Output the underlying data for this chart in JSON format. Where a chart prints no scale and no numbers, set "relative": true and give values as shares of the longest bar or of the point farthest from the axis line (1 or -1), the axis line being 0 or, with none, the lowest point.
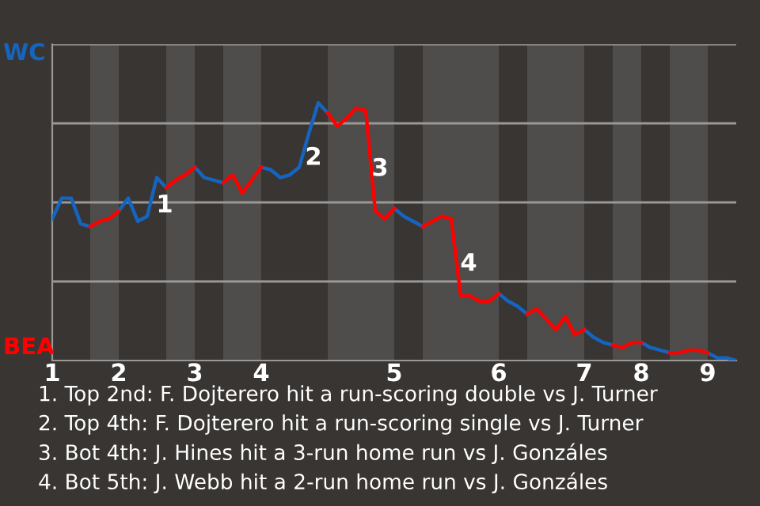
{
  "chart_data": {
    "type": "line",
    "relative": true,
    "categories": [
      "1",
      null,
      null,
      null,
      null,
      null,
      null,
      "2",
      null,
      null,
      null,
      null,
      null,
      null,
      null,
      "3",
      null,
      null,
      null,
      null,
      null,
      null,
      "4",
      null,
      null,
      null,
      null,
      null,
      null,
      null,
      null,
      null,
      null,
      null,
      null,
      null,
      "5",
      null,
      null,
      null,
      null,
      null,
      null,
      null,
      null,
      null,
      null,
      "6",
      null,
      null,
      null,
      null,
      null,
      null,
      null,
      null,
      "7",
      null,
      null,
      null,
      null,
      null,
      "8",
      null,
      null,
      null,
      null,
      null,
      null,
      "9",
      null,
      null,
      null
    ],
    "series": [
      {
        "color": "#1565c0",
        "values": [
          0.55,
          0.63,
          0.63,
          0.53,
          0.52,
          null,
          null,
          0.58,
          0.63,
          0.54,
          0.56,
          0.71,
          0.67,
          null,
          null,
          0.75,
          0.71,
          0.7,
          0.69,
          null,
          null,
          null,
          0.75,
          0.74,
          0.71,
          0.72,
          0.75,
          0.88,
          1,
          0.96,
          null,
          null,
          null,
          null,
          null,
          null,
          0.59,
          0.56,
          0.54,
          0.52,
          null,
          null,
          null,
          null,
          null,
          null,
          null,
          0.26,
          0.23,
          0.21,
          0.18,
          null,
          null,
          null,
          null,
          null,
          0.12,
          0.09,
          0.07,
          0.06,
          null,
          null,
          0.07,
          0.05,
          0.04,
          0.03,
          null,
          null,
          null,
          0.03,
          0.01,
          0.01,
          0
        ]
      },
      {
        "color": "#ff0000",
        "values": [
          null,
          null,
          null,
          null,
          0.52,
          0.54,
          0.55,
          0.58,
          null,
          null,
          null,
          null,
          0.67,
          0.7,
          0.72,
          0.75,
          null,
          null,
          0.69,
          0.72,
          0.65,
          0.7,
          0.75,
          null,
          null,
          null,
          null,
          null,
          null,
          0.96,
          0.91,
          0.94,
          0.98,
          0.97,
          0.58,
          0.55,
          0.59,
          null,
          null,
          0.52,
          0.54,
          0.56,
          0.55,
          0.25,
          0.25,
          0.23,
          0.23,
          0.26,
          null,
          null,
          0.18,
          0.2,
          0.16,
          0.12,
          0.17,
          0.1,
          0.12,
          null,
          null,
          0.06,
          0.05,
          0.07,
          0.07,
          null,
          null,
          0.03,
          0.03,
          0.04,
          0.04,
          0.03,
          null,
          null,
          null
        ]
      }
    ],
    "grid": "y",
    "tick_labels": "x",
    "marker": "none",
    "annotations": [
      "WC",
      "BEA",
      "1",
      "2",
      "3",
      "4",
      "1. Top 2nd: F. Dojterero hit a run-scoring double vs J. Turner",
      "2. Top 4th: F. Dojterero hit a run-scoring single vs J. Turner",
      "3. Bot 4th: J. Hines hit a 3-run home run vs J. Gonzáles",
      "4. Bot 5th: J. Webb hit a 2-run home run vs J. Gonzáles"
    ]
  }
}
